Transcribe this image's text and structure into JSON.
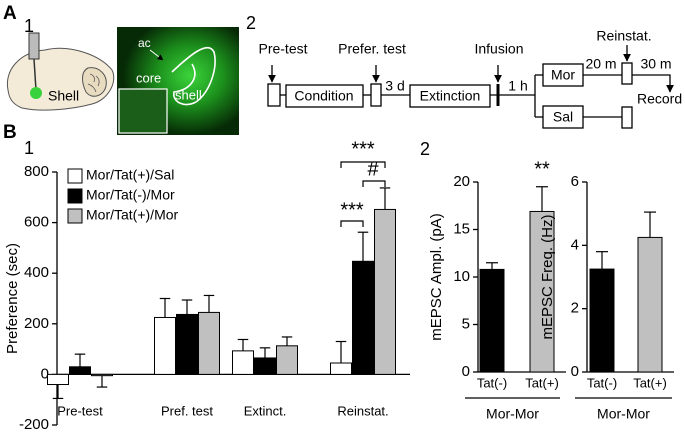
{
  "panel_labels": {
    "a": "A",
    "a1": "1",
    "a2": "2",
    "b": "B",
    "b1": "1",
    "b2": "2"
  },
  "schematic": {
    "region": "Shell",
    "image_labels": [
      "ac",
      "core",
      "shell"
    ]
  },
  "timeline": {
    "events": [
      "Pre-test",
      "Prefer. test",
      "Infusion",
      "Reinstat."
    ],
    "boxes": [
      "Condition",
      "Extinction",
      "Mor",
      "Sal"
    ],
    "intervals": [
      "3 d",
      "1 h",
      "20 m",
      "30 m"
    ],
    "end": "Record"
  },
  "chart_data": [
    {
      "type": "bar",
      "y_label": "Preference (sec)",
      "categories": [
        "Pre-test",
        "Pref. test",
        "Extinct.",
        "Reinstat."
      ],
      "series": [
        {
          "name": "Mor/Tat(+)/Sal",
          "color": "#ffffff",
          "values": [
            -40,
            225,
            93,
            45
          ],
          "errors": [
            55,
            75,
            45,
            85
          ]
        },
        {
          "name": "Mor/Tat(-)/Mor",
          "color": "#000000",
          "values": [
            30,
            237,
            65,
            447
          ],
          "errors": [
            50,
            57,
            40,
            115
          ]
        },
        {
          "name": "Mor/Tat(+)/Mor",
          "color": "#c0c0c0",
          "values": [
            -5,
            245,
            113,
            652
          ],
          "errors": [
            45,
            67,
            35,
            85
          ]
        }
      ],
      "ylim": [
        -200,
        800
      ],
      "yticks": [
        -200,
        0,
        200,
        400,
        600,
        800
      ],
      "annotations": [
        "***",
        "#",
        "***"
      ],
      "legend": "upper left"
    },
    {
      "type": "bar",
      "y_label": "mEPSC Ampl. (pA)",
      "categories": [
        "Tat(-)",
        "Tat(+)"
      ],
      "values": [
        10.8,
        16.9
      ],
      "errors": [
        0.7,
        2.6
      ],
      "colors": [
        "#000000",
        "#c0c0c0"
      ],
      "ylim": [
        0,
        20
      ],
      "yticks": [
        0,
        5,
        10,
        15,
        20
      ],
      "group_label": "Mor-Mor",
      "annotations": [
        "**"
      ]
    },
    {
      "type": "bar",
      "y_label": "mEPSC  Freq. (Hz)",
      "categories": [
        "Tat(-)",
        "Tat(+)"
      ],
      "values": [
        3.25,
        4.25
      ],
      "errors": [
        0.55,
        0.8
      ],
      "colors": [
        "#000000",
        "#c0c0c0"
      ],
      "ylim": [
        0,
        6
      ],
      "yticks": [
        0,
        2,
        4,
        6
      ],
      "group_label": "Mor-Mor",
      "annotations": []
    }
  ]
}
